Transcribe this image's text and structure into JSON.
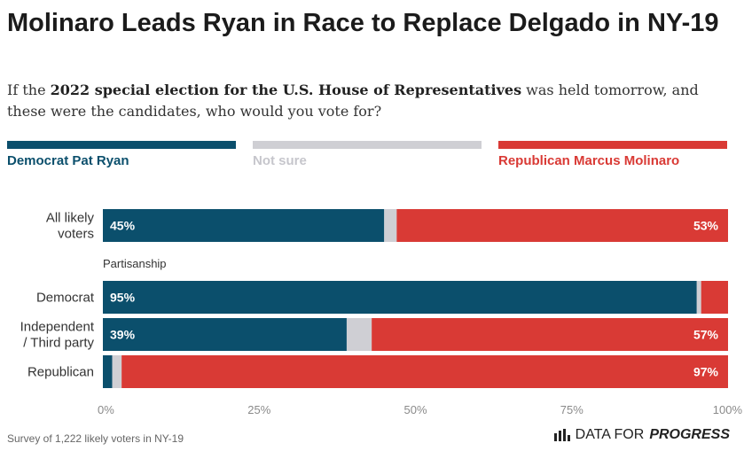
{
  "title": "Molinaro Leads Ryan in Race to Replace Delgado in NY-19",
  "subtitle": {
    "pre": "If the ",
    "bold": "2022 special election for the U.S. House of Representatives",
    "post": " was held tomorrow, and these were the candidates, who would you vote for?"
  },
  "legend": [
    {
      "label": "Democrat Pat Ryan",
      "color": "#0b4f6c"
    },
    {
      "label": "Not sure",
      "color": "#cfcfd4"
    },
    {
      "label": "Republican Marcus Molinaro",
      "color": "#d93a35"
    }
  ],
  "chart_data": {
    "type": "bar",
    "orientation": "horizontal",
    "stacked": true,
    "categories": [
      "All likely voters",
      "Democrat",
      "Independent / Third party",
      "Republican"
    ],
    "group_label": "Partisanship",
    "series": [
      {
        "name": "Democrat Pat Ryan",
        "values": [
          45,
          95,
          39,
          1.5
        ],
        "color": "#0b4f6c"
      },
      {
        "name": "Not sure",
        "values": [
          2,
          0.7,
          4,
          1.5
        ],
        "color": "#cfcfd4"
      },
      {
        "name": "Republican Marcus Molinaro",
        "values": [
          53,
          4.3,
          57,
          97
        ],
        "color": "#d93a35"
      }
    ],
    "data_labels": [
      [
        "45%",
        "",
        "53%"
      ],
      [
        "95%",
        "",
        ""
      ],
      [
        "39%",
        "",
        "57%"
      ],
      [
        "",
        "",
        "97%"
      ]
    ],
    "x_ticks": [
      "0%",
      "25%",
      "50%",
      "75%",
      "100%"
    ],
    "xlim": [
      0,
      100
    ]
  },
  "footer": {
    "note": "Survey of 1,222 likely voters in NY-19",
    "brand_plain": "DATA FOR",
    "brand_emph": "PROGRESS"
  }
}
